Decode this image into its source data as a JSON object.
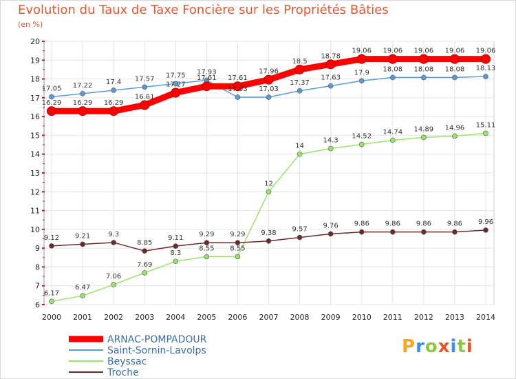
{
  "title": "Evolution du Taux de Taxe Foncière sur les Propriétés Bâties",
  "unit_label": "(en %)",
  "logo": {
    "text": "Proxiti",
    "colors": [
      "#f5a623",
      "#3a8ee6",
      "#8dc63f",
      "#e4572e",
      "#3a8ee6",
      "#8dc63f",
      "#e4572e"
    ]
  },
  "chart_data": {
    "type": "line",
    "title": "Evolution du Taux de Taxe Foncière sur les Propriétés Bâties",
    "ylabel": "(en %)",
    "xlabel": "",
    "x": [
      2000,
      2001,
      2002,
      2003,
      2004,
      2005,
      2006,
      2007,
      2008,
      2009,
      2010,
      2011,
      2012,
      2013,
      2014
    ],
    "ylim": [
      6,
      20
    ],
    "yticks": [
      6,
      7,
      8,
      9,
      10,
      11,
      12,
      13,
      14,
      15,
      16,
      17,
      18,
      19,
      20
    ],
    "grid": true,
    "legend_position": "bottom-left",
    "series": [
      {
        "name": "ARNAC-POMPADOUR",
        "color": "#ff0000",
        "emphasis": true,
        "values": [
          16.29,
          16.29,
          16.29,
          16.61,
          17.27,
          17.61,
          17.61,
          17.96,
          18.5,
          18.78,
          19.06,
          19.06,
          19.06,
          19.06,
          19.06
        ]
      },
      {
        "name": "Saint-Sornin-Lavolps",
        "color": "#5b9bd5",
        "emphasis": false,
        "values": [
          17.05,
          17.22,
          17.4,
          17.57,
          17.75,
          17.93,
          17.03,
          17.03,
          17.37,
          17.63,
          17.9,
          18.08,
          18.08,
          18.08,
          18.13
        ]
      },
      {
        "name": "Beyssac",
        "color": "#9be36a",
        "emphasis": false,
        "values": [
          6.17,
          6.47,
          7.06,
          7.69,
          8.3,
          8.55,
          8.55,
          12,
          14,
          14.3,
          14.52,
          14.74,
          14.89,
          14.96,
          15.11
        ]
      },
      {
        "name": "Troche",
        "color": "#6b2a2a",
        "emphasis": false,
        "values": [
          9.12,
          9.21,
          9.3,
          8.85,
          9.11,
          9.29,
          9.29,
          9.38,
          9.57,
          9.76,
          9.86,
          9.86,
          9.86,
          9.86,
          9.96
        ]
      }
    ]
  }
}
